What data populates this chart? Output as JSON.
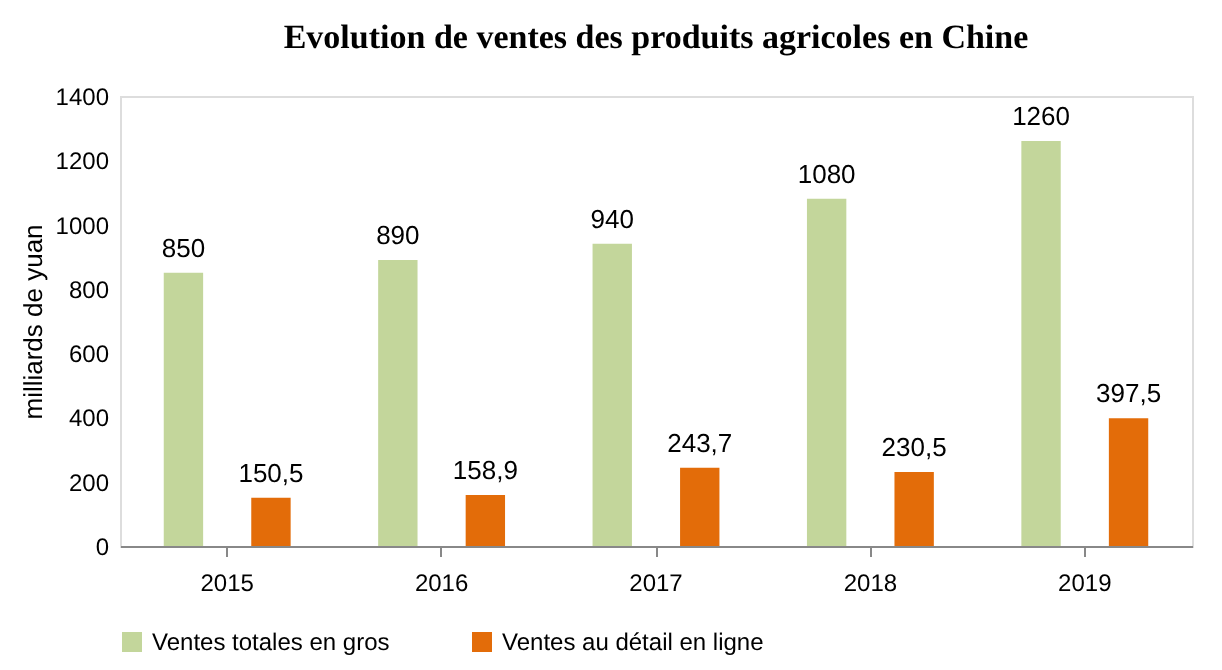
{
  "chart_data": {
    "type": "bar",
    "title": "Evolution de ventes des produits agricoles en Chine",
    "ylabel": "milliards de yuan",
    "categories": [
      "2015",
      "2016",
      "2017",
      "2018",
      "2019"
    ],
    "series": [
      {
        "name": "Ventes totales en gros",
        "color": "#c3d69b",
        "values": [
          850,
          890,
          940,
          1080,
          1260
        ],
        "value_labels": [
          "850",
          "890",
          "940",
          "1080",
          "1260"
        ]
      },
      {
        "name": "Ventes au détail en ligne",
        "color": "#e36c09",
        "values": [
          150.5,
          158.9,
          243.7,
          230.5,
          397.5
        ],
        "value_labels": [
          "150,5",
          "158,9",
          "243,7",
          "230,5",
          "397,5"
        ]
      }
    ],
    "ylim": [
      0,
      1400
    ],
    "yticks": [
      0,
      200,
      400,
      600,
      800,
      1000,
      1200,
      1400
    ],
    "grid": false,
    "legend": "bottom"
  }
}
